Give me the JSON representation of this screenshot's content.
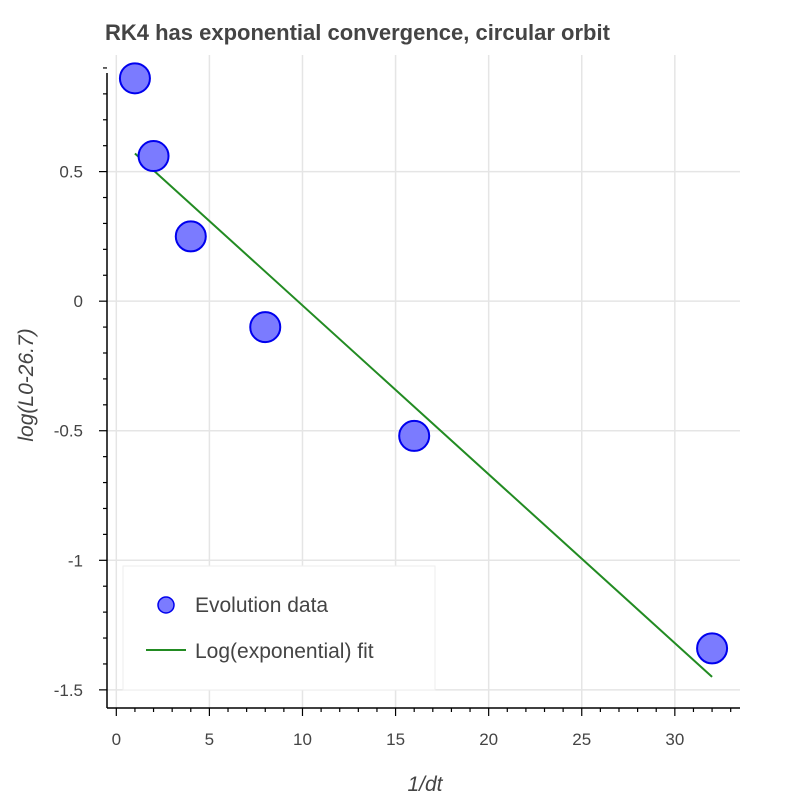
{
  "chart_data": {
    "type": "scatter",
    "title": "RK4 has exponential convergence, circular orbit",
    "xlabel": "1/dt",
    "ylabel": "log(L0-26.7)",
    "xlim": [
      -0.5,
      33.5
    ],
    "ylim": [
      -1.57,
      0.95
    ],
    "grid": true,
    "x_ticks": [
      0,
      5,
      10,
      15,
      20,
      25,
      30
    ],
    "y_ticks": [
      -1.5,
      -1,
      -0.5,
      0,
      0.5
    ],
    "x_tick_labels": [
      "0",
      "5",
      "10",
      "15",
      "20",
      "25",
      "30"
    ],
    "y_tick_labels": [
      "-1.5",
      "-1",
      "-0.5",
      "0",
      "0.5"
    ],
    "legend_position": "bottom-left",
    "series": [
      {
        "name": "Evolution data",
        "kind": "scatter",
        "color": "#7b7bff",
        "stroke": "#0000ee",
        "x": [
          1,
          2,
          4,
          8,
          16,
          32
        ],
        "y": [
          0.86,
          0.56,
          0.25,
          -0.1,
          -0.52,
          -1.34
        ]
      },
      {
        "name": "Log(exponential) fit",
        "kind": "line",
        "color": "#228b22",
        "x": [
          1,
          32
        ],
        "y": [
          0.57,
          -1.45
        ]
      }
    ]
  }
}
